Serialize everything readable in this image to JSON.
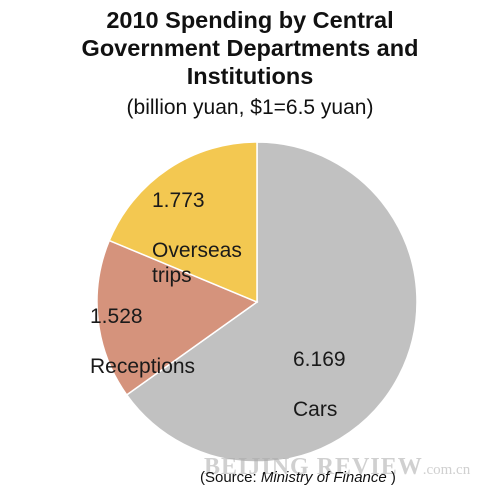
{
  "chart_data": {
    "type": "pie",
    "title": "2010 Spending by Central\nGovernment Departments and\nInstitutions",
    "subtitle": "(billion yuan, $1=6.5 yuan)",
    "slices": [
      {
        "value": "6.169",
        "category": "Cars",
        "value_num": 6.169,
        "color": "#c1c1c1"
      },
      {
        "value": "1.528",
        "category": "Receptions",
        "value_num": 1.528,
        "color": "#d5937c"
      },
      {
        "value": "1.773",
        "category": "Overseas\ntrips",
        "value_num": 1.773,
        "color": "#f3c851"
      }
    ]
  },
  "source": {
    "prefix": "(Source: ",
    "name": "Ministry of Finance",
    "suffix": " )"
  },
  "watermark": {
    "main": "BEIJING REVIEW",
    "suffix": ".com.cn"
  }
}
